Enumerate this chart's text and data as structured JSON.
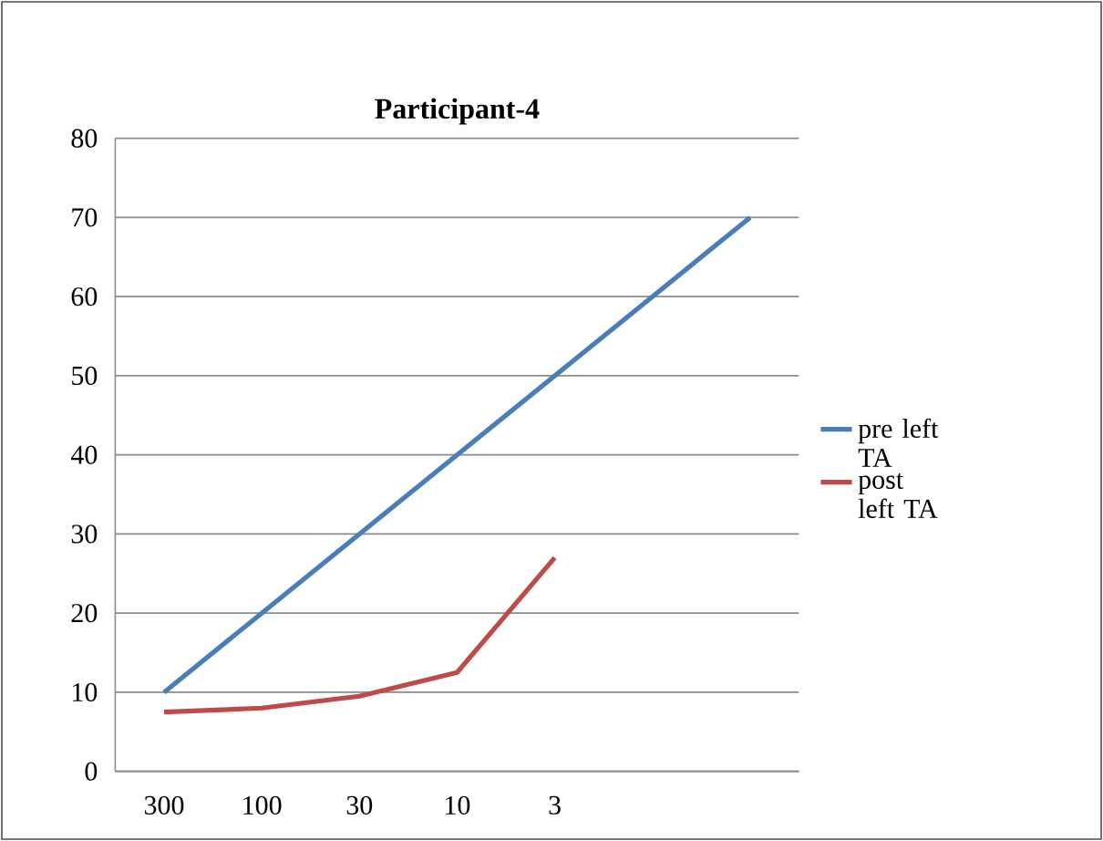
{
  "chart_data": {
    "type": "line",
    "title": "Participant-4",
    "categories": [
      "300",
      "100",
      "30",
      "10",
      "3",
      null,
      null
    ],
    "series": [
      {
        "name": "pre left TA",
        "color": "#4a7ebb",
        "values": [
          10,
          20,
          30,
          40,
          50,
          60,
          70
        ]
      },
      {
        "name": "post left TA",
        "color": "#be4b48",
        "values": [
          7.5,
          8,
          9.5,
          12.5,
          27,
          null,
          null
        ]
      }
    ],
    "ylim": [
      0,
      80
    ],
    "yticks": [
      0,
      10,
      20,
      30,
      40,
      50,
      60,
      70,
      80
    ],
    "grid": "y",
    "legend": "right"
  }
}
